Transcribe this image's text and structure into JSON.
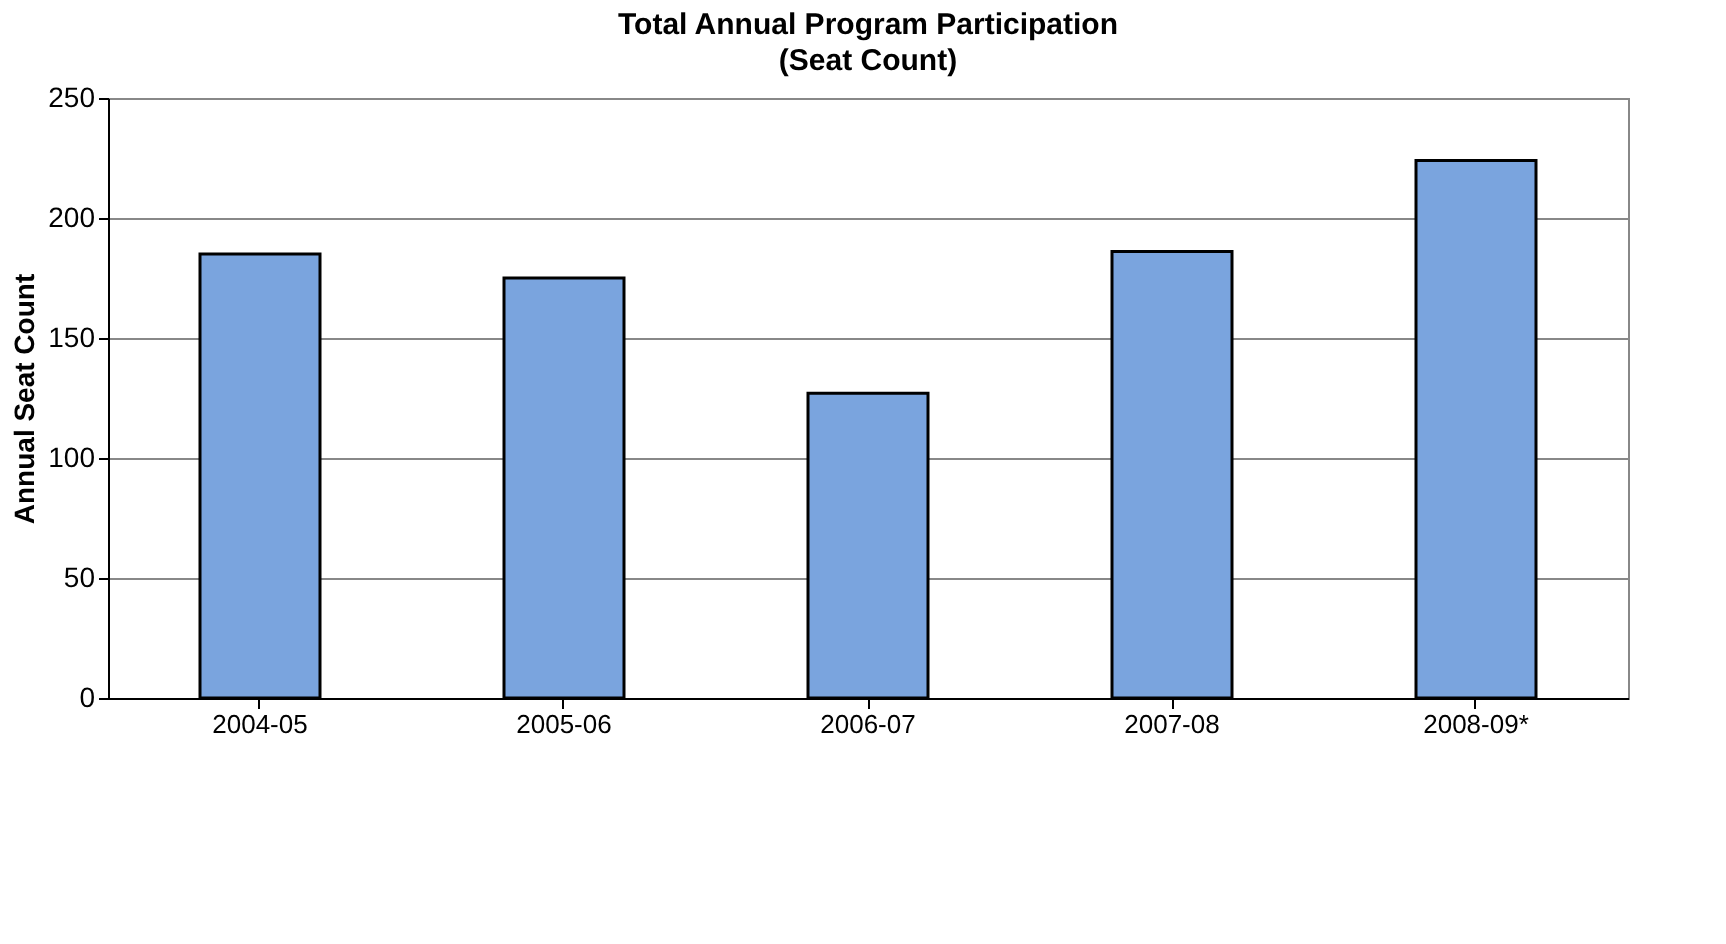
{
  "chart_data": {
    "type": "bar",
    "title": "Total Annual Program Participation",
    "subtitle": "(Seat Count)",
    "ylabel": "Annual Seat Count",
    "categories": [
      "2004-05",
      "2005-06",
      "2006-07",
      "2007-08",
      "2008-09*"
    ],
    "values": [
      185,
      175,
      127,
      186,
      224
    ],
    "color": "#7aa4de",
    "ylim": [
      0,
      250
    ],
    "yticks": [
      0,
      50,
      100,
      150,
      200,
      250
    ],
    "grid": "y"
  }
}
